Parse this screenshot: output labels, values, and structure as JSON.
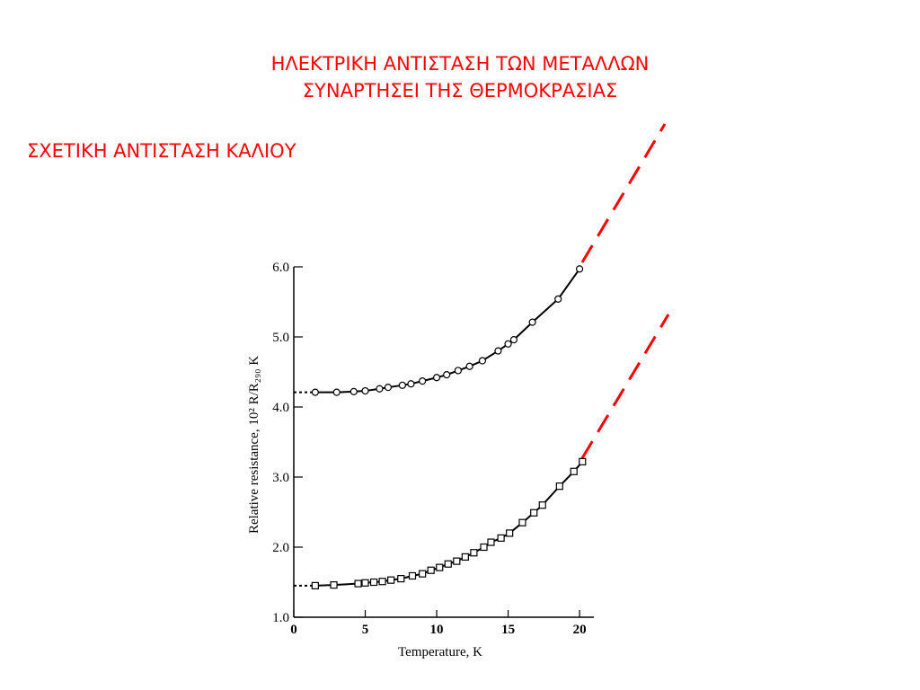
{
  "chart_data": {
    "type": "scatter",
    "title": [
      "ΗΛΕΚΤΡΙΚΗ ΑΝΤΙΣΤΑΣΗ ΤΩΝ ΜΕΤΑΛΛΩΝ",
      "ΣΥΝΑΡΤΗΣΕΙ ΤΗΣ ΘΕΡΜΟΚΡΑΣΙΑΣ"
    ],
    "subtitle": "ΣΧΕΤΙΚΗ ΑΝΤΙΣΤΑΣΗ ΚΑΛΙΟΥ",
    "x_label": "Temperature, K",
    "y_label": "Relative resistance, 10² R/R₂₉₀ K",
    "xlim": [
      0,
      21
    ],
    "ylim": [
      1,
      6
    ],
    "xticks": [
      0,
      5,
      10,
      15,
      20
    ],
    "yticks": [
      {
        "value": 1,
        "label": "1.0"
      },
      {
        "value": 2,
        "label": "2.0"
      },
      {
        "value": 3,
        "label": "3.0"
      },
      {
        "value": 4,
        "label": "4.0"
      },
      {
        "value": 5,
        "label": "5.0"
      },
      {
        "value": 6,
        "label": "6.0"
      }
    ],
    "series": [
      {
        "marker": "circle",
        "color": "#000000",
        "x": [
          1.5,
          3,
          4.2,
          5,
          6,
          6.6,
          7.6,
          8.2,
          9,
          10,
          10.7,
          11.5,
          12.3,
          13.2,
          14.3,
          15,
          15.4,
          16.7,
          18.5,
          20
        ],
        "values": [
          4.21,
          4.21,
          4.22,
          4.23,
          4.26,
          4.28,
          4.31,
          4.33,
          4.37,
          4.42,
          4.46,
          4.52,
          4.58,
          4.66,
          4.8,
          4.9,
          4.96,
          5.21,
          5.54,
          5.97
        ]
      },
      {
        "marker": "square",
        "color": "#000000",
        "x": [
          1.5,
          2.8,
          4.5,
          5,
          5.6,
          6.2,
          6.8,
          7.5,
          8.3,
          9,
          9.6,
          10.2,
          10.8,
          11.4,
          12,
          12.6,
          13.3,
          13.8,
          14.5,
          15.1,
          16,
          16.8,
          17.4,
          18.6,
          19.6,
          20.2
        ],
        "values": [
          1.45,
          1.46,
          1.48,
          1.49,
          1.5,
          1.51,
          1.53,
          1.55,
          1.59,
          1.62,
          1.67,
          1.71,
          1.76,
          1.8,
          1.86,
          1.92,
          2.0,
          2.07,
          2.13,
          2.2,
          2.35,
          2.49,
          2.6,
          2.87,
          3.08,
          3.22
        ]
      }
    ]
  }
}
